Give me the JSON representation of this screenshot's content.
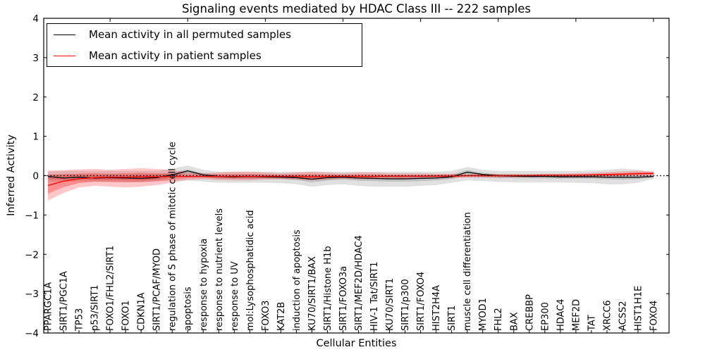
{
  "title": "Signaling events mediated by HDAC Class III -- 222 samples",
  "legend": {
    "items": [
      {
        "label": "Mean activity in all permuted samples",
        "color": "#000000"
      },
      {
        "label": "Mean activity in patient samples",
        "color": "#ff0000"
      }
    ]
  },
  "chart_data": {
    "type": "line",
    "title": "Signaling events mediated by HDAC Class III -- 222 samples",
    "xlabel": "Cellular Entities",
    "ylabel": "Inferred Activity",
    "ylim": [
      -4,
      4
    ],
    "yticks": [
      4,
      3,
      2,
      1,
      0,
      -1,
      -2,
      -3,
      -4
    ],
    "grid": false,
    "legend_position": "upper left",
    "zero_line": {
      "style": "dotted",
      "color": "#000000",
      "y": 0
    },
    "top_tick_indices": [
      4,
      9,
      14,
      19,
      24,
      29,
      34,
      39
    ],
    "categories": [
      "PPARGC1A",
      "SIRT1/PGC1A",
      "TP53",
      "p53/SIRT1",
      "FOXO1/FHL2/SIRT1",
      "FOXO1",
      "CDKN1A",
      "SIRT1/PCAF/MYOD",
      "regulation of S phase of mitotic cell cycle",
      "apoptosis",
      "response to hypoxia",
      "response to nutrient levels",
      "response to UV",
      "mol:Lysophosphatidic acid",
      "FOXO3",
      "KAT2B",
      "induction of apoptosis",
      "KU70/SIRT1/BAX",
      "SIRT1/Histone H1b",
      "SIRT1/FOXO3a",
      "SIRT1/MEF2D/HDAC4",
      "HIV-1 Tat/SIRT1",
      "KU70/SIRT1",
      "SIRT1/p300",
      "SIRT1/FOXO4",
      "HIST2H4A",
      "SIRT1",
      "muscle cell differentiation",
      "MYOD1",
      "FHL2",
      "BAX",
      "CREBBP",
      "EP300",
      "HDAC4",
      "MEF2D",
      "TAT",
      "XRCC6",
      "ACSS2",
      "HIST1H1E",
      "FOXO4"
    ],
    "series": [
      {
        "name": "Mean activity in all permuted samples",
        "color": "#000000",
        "values": [
          -0.02,
          -0.06,
          -0.04,
          -0.06,
          -0.05,
          -0.06,
          -0.07,
          -0.05,
          0.02,
          0.12,
          0.02,
          -0.02,
          -0.03,
          -0.02,
          -0.03,
          -0.04,
          -0.05,
          -0.09,
          -0.05,
          -0.04,
          -0.06,
          -0.07,
          -0.08,
          -0.08,
          -0.07,
          -0.06,
          -0.03,
          0.09,
          0.03,
          0.0,
          -0.01,
          -0.02,
          -0.02,
          -0.03,
          -0.03,
          -0.03,
          -0.04,
          -0.04,
          -0.04,
          -0.02
        ]
      },
      {
        "name": "Mean activity in patient samples",
        "color": "#ff0000",
        "values": [
          -0.25,
          -0.14,
          -0.08,
          -0.05,
          -0.04,
          -0.04,
          -0.03,
          -0.03,
          -0.02,
          -0.02,
          -0.02,
          -0.02,
          -0.02,
          -0.02,
          -0.02,
          -0.02,
          -0.02,
          -0.03,
          -0.02,
          -0.02,
          -0.02,
          -0.02,
          -0.01,
          -0.01,
          -0.01,
          -0.01,
          -0.01,
          0.0,
          0.0,
          0.0,
          0.0,
          0.0,
          0.01,
          0.01,
          0.01,
          0.02,
          0.03,
          0.04,
          0.05,
          0.06
        ]
      }
    ],
    "bands": [
      {
        "name": "permuted-envelope",
        "color": "#999999",
        "opacity": 0.3,
        "upper": [
          0.1,
          0.12,
          0.12,
          0.12,
          0.12,
          0.12,
          0.12,
          0.12,
          0.18,
          0.26,
          0.15,
          0.1,
          0.1,
          0.1,
          0.1,
          0.1,
          0.1,
          0.1,
          0.1,
          0.1,
          0.1,
          0.1,
          0.1,
          0.1,
          0.1,
          0.1,
          0.12,
          0.22,
          0.15,
          0.12,
          0.12,
          0.12,
          0.12,
          0.12,
          0.12,
          0.13,
          0.15,
          0.18,
          0.15,
          0.08
        ],
        "lower": [
          -0.14,
          -0.16,
          -0.15,
          -0.16,
          -0.16,
          -0.16,
          -0.17,
          -0.15,
          -0.14,
          -0.12,
          -0.15,
          -0.18,
          -0.18,
          -0.18,
          -0.18,
          -0.19,
          -0.22,
          -0.28,
          -0.24,
          -0.22,
          -0.26,
          -0.28,
          -0.28,
          -0.28,
          -0.26,
          -0.24,
          -0.18,
          -0.12,
          -0.14,
          -0.16,
          -0.17,
          -0.17,
          -0.17,
          -0.17,
          -0.18,
          -0.19,
          -0.22,
          -0.22,
          -0.18,
          -0.08
        ]
      },
      {
        "name": "permuted-quartile",
        "color": "#777777",
        "opacity": 0.3,
        "upper": [
          0.03,
          0.02,
          0.03,
          0.02,
          0.03,
          0.02,
          0.02,
          0.03,
          0.08,
          0.16,
          0.06,
          0.03,
          0.02,
          0.03,
          0.02,
          0.02,
          0.01,
          0.0,
          0.01,
          0.02,
          0.0,
          0.0,
          -0.01,
          -0.01,
          0.0,
          0.01,
          0.03,
          0.14,
          0.07,
          0.04,
          0.03,
          0.03,
          0.03,
          0.02,
          0.02,
          0.02,
          0.02,
          0.02,
          0.01,
          0.01
        ],
        "lower": [
          -0.08,
          -0.11,
          -0.09,
          -0.11,
          -0.1,
          -0.11,
          -0.12,
          -0.1,
          -0.05,
          0.05,
          -0.04,
          -0.08,
          -0.08,
          -0.08,
          -0.08,
          -0.09,
          -0.11,
          -0.17,
          -0.12,
          -0.1,
          -0.13,
          -0.14,
          -0.15,
          -0.15,
          -0.14,
          -0.12,
          -0.09,
          0.03,
          -0.03,
          -0.06,
          -0.06,
          -0.07,
          -0.07,
          -0.08,
          -0.08,
          -0.08,
          -0.09,
          -0.1,
          -0.09,
          -0.05
        ]
      },
      {
        "name": "patient-envelope",
        "color": "#ff0000",
        "opacity": 0.22,
        "upper": [
          0.13,
          0.14,
          0.16,
          0.17,
          0.15,
          0.17,
          0.19,
          0.17,
          0.14,
          0.08,
          0.06,
          0.08,
          0.1,
          0.1,
          0.08,
          0.06,
          0.08,
          0.1,
          0.08,
          0.06,
          0.08,
          0.08,
          0.06,
          0.06,
          0.06,
          0.05,
          0.05,
          0.04,
          0.04,
          0.04,
          0.04,
          0.04,
          0.05,
          0.05,
          0.06,
          0.07,
          0.09,
          0.11,
          0.12,
          0.11
        ],
        "lower": [
          -0.63,
          -0.44,
          -0.3,
          -0.26,
          -0.28,
          -0.3,
          -0.28,
          -0.24,
          -0.18,
          -0.11,
          -0.09,
          -0.11,
          -0.12,
          -0.12,
          -0.1,
          -0.09,
          -0.1,
          -0.12,
          -0.1,
          -0.08,
          -0.09,
          -0.09,
          -0.08,
          -0.08,
          -0.08,
          -0.07,
          -0.06,
          -0.05,
          -0.05,
          -0.05,
          -0.05,
          -0.04,
          -0.04,
          -0.04,
          -0.03,
          -0.03,
          -0.02,
          -0.01,
          0.0,
          0.01
        ]
      },
      {
        "name": "patient-quartile",
        "color": "#ff0000",
        "opacity": 0.28,
        "upper": [
          0.02,
          0.04,
          0.05,
          0.06,
          0.05,
          0.06,
          0.07,
          0.06,
          0.05,
          0.03,
          0.02,
          0.03,
          0.04,
          0.04,
          0.03,
          0.02,
          0.03,
          0.04,
          0.03,
          0.02,
          0.03,
          0.03,
          0.02,
          0.02,
          0.02,
          0.02,
          0.02,
          0.02,
          0.02,
          0.02,
          0.02,
          0.02,
          0.02,
          0.03,
          0.03,
          0.04,
          0.05,
          0.06,
          0.08,
          0.08
        ],
        "lower": [
          -0.46,
          -0.29,
          -0.19,
          -0.15,
          -0.16,
          -0.17,
          -0.16,
          -0.14,
          -0.1,
          -0.06,
          -0.05,
          -0.06,
          -0.07,
          -0.07,
          -0.06,
          -0.05,
          -0.06,
          -0.07,
          -0.06,
          -0.05,
          -0.05,
          -0.05,
          -0.05,
          -0.05,
          -0.05,
          -0.04,
          -0.04,
          -0.03,
          -0.03,
          -0.03,
          -0.03,
          -0.03,
          -0.02,
          -0.02,
          -0.02,
          -0.01,
          -0.01,
          0.0,
          0.01,
          0.02
        ]
      }
    ]
  }
}
